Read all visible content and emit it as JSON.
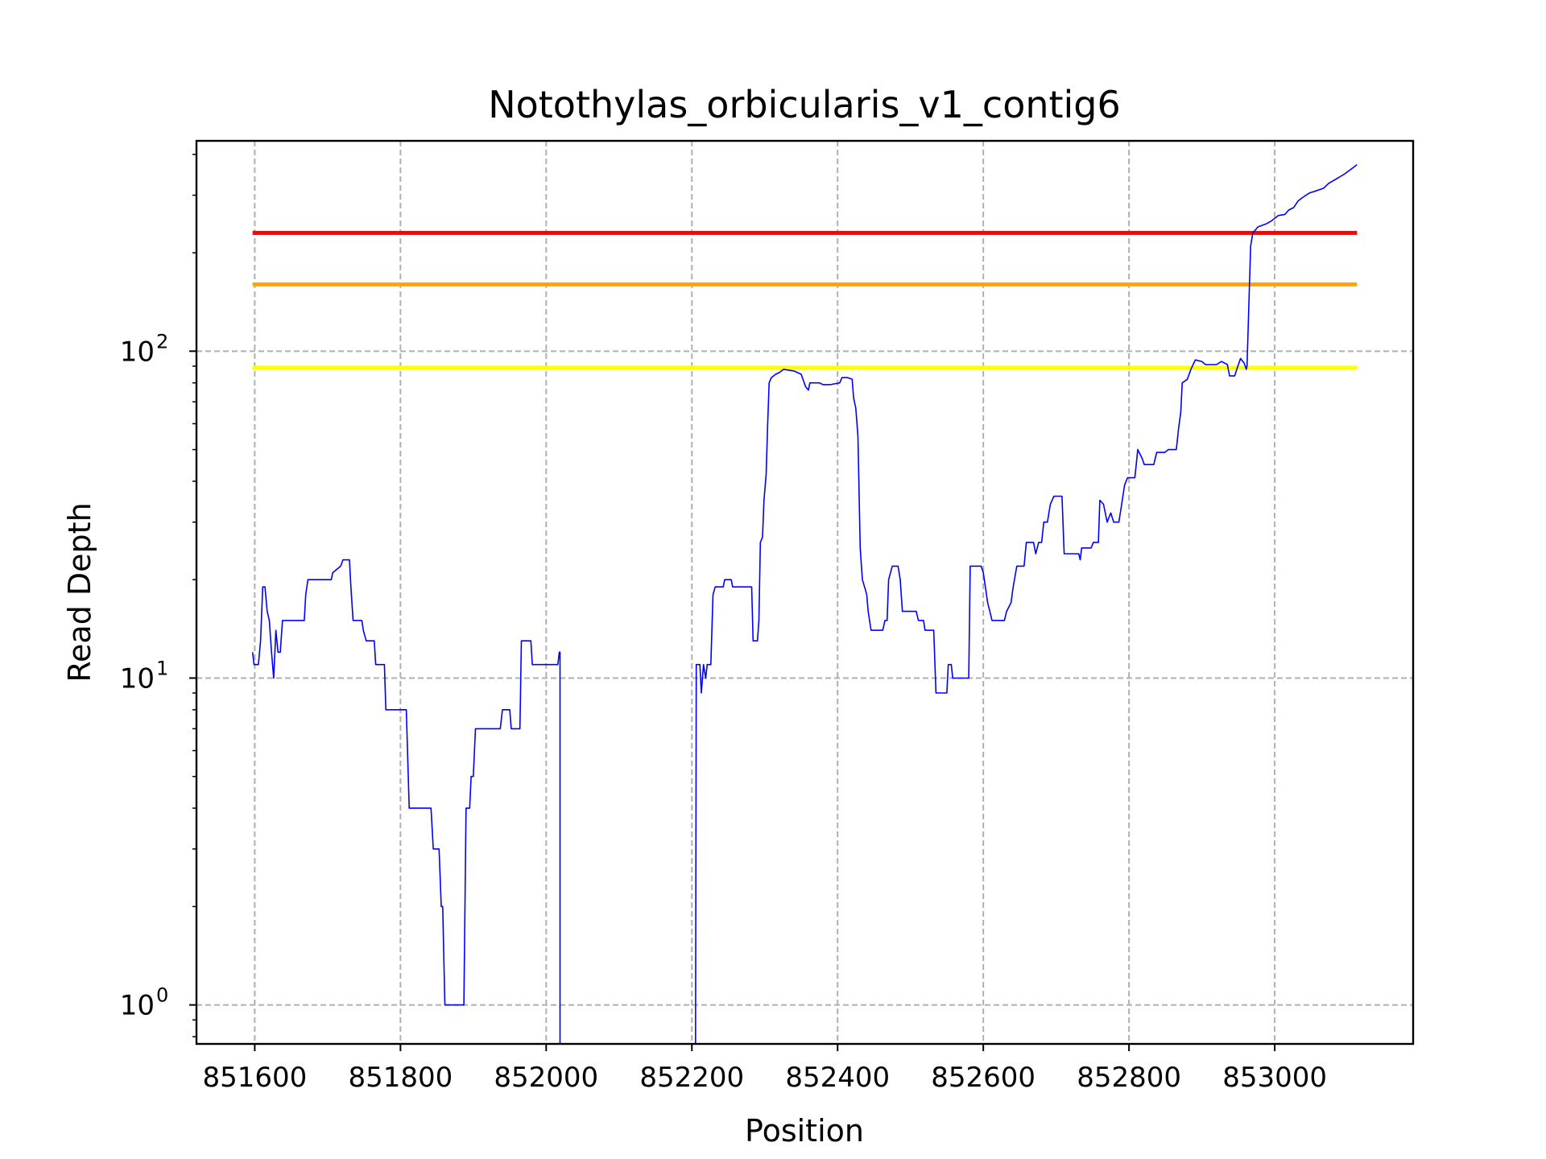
{
  "chart_data": {
    "type": "line",
    "title": "Notothylas_orbicularis_v1_contig6",
    "xlabel": "Position",
    "ylabel": "Read Depth",
    "yscale": "log",
    "grid": true,
    "xlim": [
      851520,
      853190
    ],
    "ylim": [
      0.76,
      440
    ],
    "x_ticks": [
      {
        "value": 851600,
        "label": "851600"
      },
      {
        "value": 851800,
        "label": "851800"
      },
      {
        "value": 852000,
        "label": "852000"
      },
      {
        "value": 852200,
        "label": "852200"
      },
      {
        "value": 852400,
        "label": "852400"
      },
      {
        "value": 852600,
        "label": "852600"
      },
      {
        "value": 852800,
        "label": "852800"
      },
      {
        "value": 853000,
        "label": "853000"
      }
    ],
    "y_ticks": [
      {
        "value": 1,
        "base": "10",
        "exp": "0"
      },
      {
        "value": 10,
        "base": "10",
        "exp": "1"
      },
      {
        "value": 100,
        "base": "10",
        "exp": "2"
      }
    ],
    "thresholds": [
      {
        "value": 89,
        "color": "#ffff00",
        "x_range": [
          851597,
          853113
        ]
      },
      {
        "value": 160,
        "color": "#ffa500",
        "x_range": [
          851597,
          853113
        ]
      },
      {
        "value": 230,
        "color": "#ff0000",
        "x_range": [
          851597,
          853113
        ]
      }
    ],
    "series": [
      {
        "color": "#0000ff",
        "segments": [
          [
            [
              851597,
              12
            ],
            [
              851599,
              11
            ],
            [
              851605,
              11
            ],
            [
              851608,
              13
            ],
            [
              851611,
              19
            ],
            [
              851614,
              19
            ],
            [
              851617,
              16
            ],
            [
              851620,
              15
            ],
            [
              851623,
              12
            ],
            [
              851626,
              10
            ],
            [
              851629,
              14
            ],
            [
              851632,
              12
            ],
            [
              851635,
              12
            ],
            [
              851638,
              15
            ],
            [
              851668,
              15
            ],
            [
              851670,
              18
            ],
            [
              851673,
              20
            ],
            [
              851705,
              20
            ],
            [
              851707,
              21
            ],
            [
              851718,
              22
            ],
            [
              851721,
              23
            ],
            [
              851730,
              23
            ],
            [
              851732,
              19
            ],
            [
              851735,
              15
            ],
            [
              851747,
              15
            ],
            [
              851749,
              14
            ],
            [
              851753,
              13
            ],
            [
              851764,
              13
            ],
            [
              851766,
              11
            ],
            [
              851778,
              11
            ],
            [
              851780,
              8
            ],
            [
              851808,
              8
            ],
            [
              851812,
              4
            ],
            [
              851842,
              4
            ],
            [
              851845,
              3
            ],
            [
              851853,
              3
            ],
            [
              851856,
              2
            ],
            [
              851858,
              2
            ],
            [
              851861,
              1
            ],
            [
              851887,
              1
            ],
            [
              851890,
              4
            ],
            [
              851895,
              4
            ],
            [
              851897,
              5
            ],
            [
              851900,
              5
            ],
            [
              851903,
              7
            ],
            [
              851937,
              7
            ],
            [
              851940,
              8
            ],
            [
              851950,
              8
            ],
            [
              851952,
              7
            ],
            [
              851964,
              7
            ],
            [
              851966,
              13
            ],
            [
              851979,
              13
            ],
            [
              851981,
              11
            ],
            [
              852016,
              11
            ],
            [
              852018,
              12
            ],
            [
              852019,
              12
            ],
            [
              852019,
              0.76
            ]
          ],
          [
            [
              852205,
              0.76
            ],
            [
              852206,
              11
            ],
            [
              852211,
              11
            ],
            [
              852213,
              9
            ],
            [
              852216,
              11
            ],
            [
              852219,
              10
            ],
            [
              852221,
              11
            ],
            [
              852226,
              11
            ],
            [
              852229,
              18
            ],
            [
              852232,
              19
            ],
            [
              852243,
              19
            ],
            [
              852245,
              20
            ],
            [
              852254,
              20
            ],
            [
              852256,
              19
            ],
            [
              852282,
              19
            ],
            [
              852284,
              13
            ],
            [
              852290,
              13
            ],
            [
              852292,
              15
            ],
            [
              852294,
              26
            ],
            [
              852297,
              27
            ],
            [
              852299,
              35
            ],
            [
              852302,
              42
            ],
            [
              852304,
              60
            ],
            [
              852306,
              80
            ],
            [
              852309,
              83
            ],
            [
              852315,
              85
            ],
            [
              852320,
              86
            ],
            [
              852326,
              88
            ],
            [
              852340,
              87
            ],
            [
              852350,
              85
            ],
            [
              852356,
              78
            ],
            [
              852360,
              76
            ],
            [
              852362,
              80
            ],
            [
              852375,
              80
            ],
            [
              852380,
              79
            ],
            [
              852390,
              79
            ],
            [
              852403,
              80
            ],
            [
              852406,
              83
            ],
            [
              852414,
              83
            ],
            [
              852420,
              82
            ],
            [
              852422,
              72
            ],
            [
              852425,
              67
            ],
            [
              852428,
              55
            ],
            [
              852431,
              25
            ],
            [
              852434,
              20
            ],
            [
              852437,
              19
            ],
            [
              852440,
              18
            ],
            [
              852442,
              16
            ],
            [
              852446,
              14
            ],
            [
              852462,
              14
            ],
            [
              852465,
              15
            ],
            [
              852468,
              15
            ],
            [
              852470,
              20
            ],
            [
              852475,
              22
            ],
            [
              852483,
              22
            ],
            [
              852486,
              20
            ],
            [
              852489,
              16
            ],
            [
              852508,
              16
            ],
            [
              852511,
              15
            ],
            [
              852518,
              15
            ],
            [
              852520,
              14
            ],
            [
              852532,
              14
            ],
            [
              852535,
              9
            ],
            [
              852550,
              9
            ],
            [
              852552,
              11
            ],
            [
              852556,
              11
            ],
            [
              852558,
              10
            ],
            [
              852580,
              10
            ],
            [
              852582,
              22
            ],
            [
              852597,
              22
            ],
            [
              852600,
              21
            ],
            [
              852606,
              17
            ],
            [
              852609,
              16
            ],
            [
              852612,
              15
            ],
            [
              852629,
              15
            ],
            [
              852632,
              16
            ],
            [
              852638,
              17
            ],
            [
              852641,
              19
            ],
            [
              852646,
              22
            ],
            [
              852656,
              22
            ],
            [
              852659,
              26
            ],
            [
              852669,
              26
            ],
            [
              852672,
              24
            ],
            [
              852676,
              26
            ],
            [
              852680,
              26
            ],
            [
              852683,
              30
            ],
            [
              852688,
              30
            ],
            [
              852692,
              34
            ],
            [
              852697,
              36
            ],
            [
              852708,
              36
            ],
            [
              852711,
              24
            ],
            [
              852731,
              24
            ],
            [
              852733,
              23
            ],
            [
              852735,
              25
            ],
            [
              852748,
              25
            ],
            [
              852751,
              26
            ],
            [
              852758,
              26
            ],
            [
              852760,
              35
            ],
            [
              852765,
              34
            ],
            [
              852770,
              30
            ],
            [
              852775,
              32
            ],
            [
              852779,
              30
            ],
            [
              852786,
              30
            ],
            [
              852789,
              33
            ],
            [
              852794,
              39
            ],
            [
              852798,
              41
            ],
            [
              852808,
              41
            ],
            [
              852812,
              50
            ],
            [
              852818,
              47
            ],
            [
              852821,
              45
            ],
            [
              852834,
              45
            ],
            [
              852838,
              49
            ],
            [
              852849,
              49
            ],
            [
              852854,
              50
            ],
            [
              852865,
              50
            ],
            [
              852868,
              58
            ],
            [
              852871,
              65
            ],
            [
              852873,
              80
            ],
            [
              852880,
              82
            ],
            [
              852885,
              88
            ],
            [
              852891,
              94
            ],
            [
              852900,
              93
            ],
            [
              852905,
              91
            ],
            [
              852920,
              91
            ],
            [
              852927,
              93
            ],
            [
              852935,
              91
            ],
            [
              852938,
              84
            ],
            [
              852945,
              84
            ],
            [
              852948,
              88
            ],
            [
              852953,
              95
            ],
            [
              852958,
              92
            ],
            [
              852961,
              88
            ],
            [
              852962,
              90
            ],
            [
              852965,
              150
            ],
            [
              852967,
              210
            ],
            [
              852970,
              230
            ],
            [
              852977,
              240
            ],
            [
              852988,
              245
            ],
            [
              852995,
              250
            ],
            [
              853005,
              260
            ],
            [
              853014,
              262
            ],
            [
              853019,
              270
            ],
            [
              853026,
              275
            ],
            [
              853032,
              288
            ],
            [
              853038,
              295
            ],
            [
              853048,
              305
            ],
            [
              853058,
              310
            ],
            [
              853067,
              315
            ],
            [
              853074,
              326
            ],
            [
              853080,
              332
            ],
            [
              853088,
              340
            ],
            [
              853097,
              350
            ],
            [
              853106,
              362
            ],
            [
              853113,
              372
            ]
          ]
        ]
      }
    ]
  }
}
